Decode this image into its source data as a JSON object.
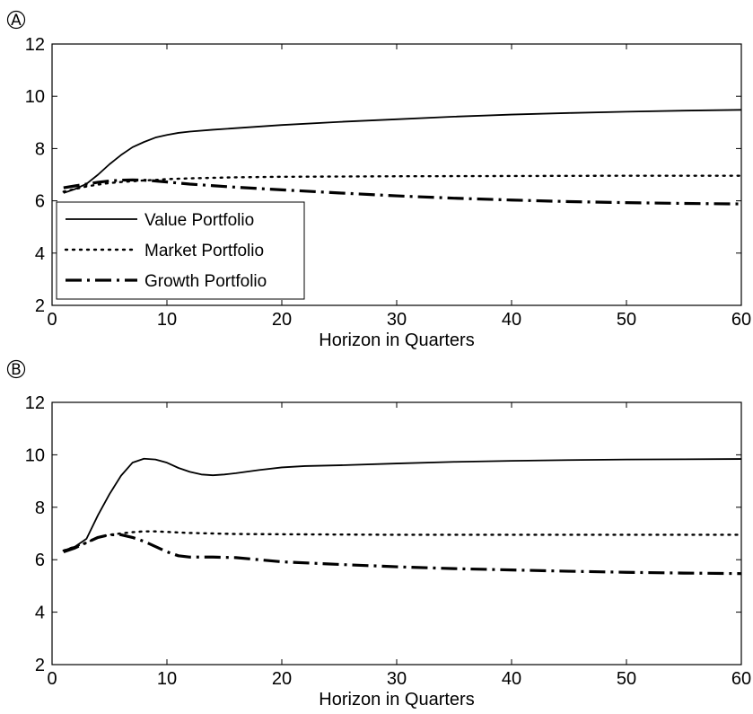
{
  "chart_data": [
    {
      "type": "line",
      "panel_label": "A",
      "xlabel": "Horizon in Quarters",
      "ylabel": "",
      "xlim": [
        0,
        60
      ],
      "ylim": [
        2,
        12
      ],
      "xticks": [
        0,
        10,
        20,
        30,
        40,
        50,
        60
      ],
      "yticks": [
        2,
        4,
        6,
        8,
        10,
        12
      ],
      "grid": false,
      "legend_position": "lower-left",
      "series": [
        {
          "name": "Value Portfolio",
          "style": "solid",
          "color": "#000000",
          "x": [
            1,
            2,
            3,
            4,
            5,
            6,
            7,
            8,
            9,
            10,
            11,
            12,
            14,
            16,
            18,
            20,
            25,
            30,
            35,
            40,
            45,
            50,
            55,
            60
          ],
          "y": [
            6.3,
            6.45,
            6.65,
            7.0,
            7.4,
            7.75,
            8.05,
            8.25,
            8.42,
            8.52,
            8.6,
            8.65,
            8.72,
            8.78,
            8.84,
            8.9,
            9.02,
            9.12,
            9.22,
            9.3,
            9.36,
            9.41,
            9.45,
            9.48
          ]
        },
        {
          "name": "Market Portfolio",
          "style": "dotted",
          "color": "#000000",
          "x": [
            1,
            2,
            3,
            4,
            5,
            6,
            7,
            8,
            9,
            10,
            12,
            14,
            16,
            20,
            25,
            30,
            40,
            50,
            60
          ],
          "y": [
            6.35,
            6.45,
            6.55,
            6.62,
            6.68,
            6.72,
            6.75,
            6.78,
            6.8,
            6.83,
            6.86,
            6.88,
            6.9,
            6.92,
            6.93,
            6.94,
            6.95,
            6.96,
            6.96
          ]
        },
        {
          "name": "Growth Portfolio",
          "style": "dashdot",
          "color": "#000000",
          "x": [
            1,
            2,
            3,
            4,
            5,
            6,
            7,
            8,
            9,
            10,
            12,
            14,
            16,
            20,
            25,
            30,
            35,
            40,
            45,
            50,
            55,
            60
          ],
          "y": [
            6.5,
            6.57,
            6.64,
            6.71,
            6.76,
            6.79,
            6.8,
            6.79,
            6.76,
            6.72,
            6.64,
            6.58,
            6.52,
            6.42,
            6.3,
            6.19,
            6.1,
            6.03,
            5.97,
            5.93,
            5.9,
            5.88
          ]
        }
      ]
    },
    {
      "type": "line",
      "panel_label": "B",
      "xlabel": "Horizon in Quarters",
      "ylabel": "",
      "xlim": [
        0,
        60
      ],
      "ylim": [
        2,
        12
      ],
      "xticks": [
        0,
        10,
        20,
        30,
        40,
        50,
        60
      ],
      "yticks": [
        2,
        4,
        6,
        8,
        10,
        12
      ],
      "grid": false,
      "series": [
        {
          "name": "Value Portfolio",
          "style": "solid",
          "color": "#000000",
          "x": [
            1,
            2,
            3,
            4,
            5,
            6,
            7,
            8,
            9,
            10,
            11,
            12,
            13,
            14,
            15,
            16,
            18,
            20,
            22,
            25,
            30,
            35,
            40,
            45,
            50,
            55,
            60
          ],
          "y": [
            6.35,
            6.5,
            6.8,
            7.7,
            8.5,
            9.2,
            9.7,
            9.85,
            9.82,
            9.7,
            9.5,
            9.35,
            9.25,
            9.22,
            9.25,
            9.3,
            9.42,
            9.52,
            9.57,
            9.6,
            9.67,
            9.73,
            9.77,
            9.8,
            9.82,
            9.83,
            9.84
          ]
        },
        {
          "name": "Market Portfolio",
          "style": "dotted",
          "color": "#000000",
          "x": [
            1,
            2,
            3,
            4,
            5,
            6,
            7,
            8,
            9,
            10,
            12,
            14,
            16,
            20,
            25,
            30,
            40,
            50,
            60
          ],
          "y": [
            6.35,
            6.5,
            6.65,
            6.85,
            6.95,
            7.0,
            7.05,
            7.08,
            7.08,
            7.06,
            7.02,
            7.0,
            6.98,
            6.97,
            6.96,
            6.95,
            6.95,
            6.95,
            6.95
          ]
        },
        {
          "name": "Growth Portfolio",
          "style": "dashdot",
          "color": "#000000",
          "x": [
            1,
            2,
            3,
            4,
            5,
            6,
            7,
            8,
            9,
            10,
            11,
            12,
            14,
            16,
            18,
            20,
            25,
            30,
            35,
            40,
            45,
            50,
            55,
            60
          ],
          "y": [
            6.3,
            6.45,
            6.65,
            6.85,
            6.95,
            6.95,
            6.85,
            6.7,
            6.5,
            6.3,
            6.15,
            6.1,
            6.1,
            6.08,
            6.0,
            5.92,
            5.82,
            5.73,
            5.66,
            5.61,
            5.56,
            5.52,
            5.49,
            5.47
          ]
        }
      ]
    }
  ]
}
